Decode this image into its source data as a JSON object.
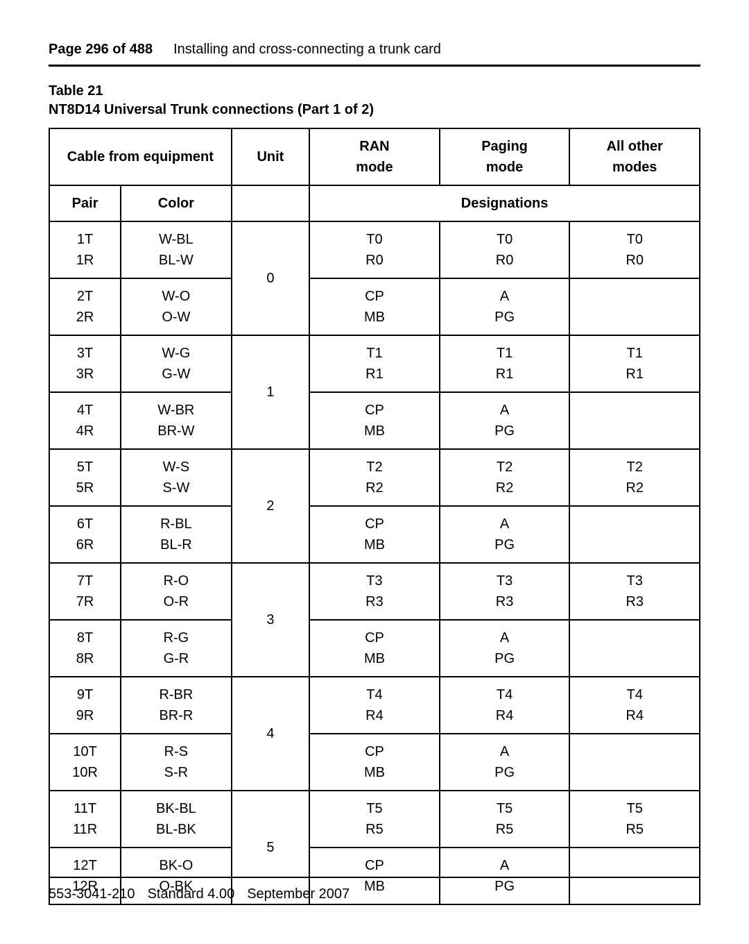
{
  "header": {
    "page_label": "Page 296 of 488",
    "title": "Installing and cross-connecting a trunk card"
  },
  "table": {
    "label": "Table 21",
    "caption": "NT8D14 Universal Trunk connections (Part 1 of 2)",
    "head": {
      "cable_from_equipment": "Cable from equipment",
      "unit": "Unit",
      "ran_mode_l1": "RAN",
      "ran_mode_l2": "mode",
      "paging_mode_l1": "Paging",
      "paging_mode_l2": "mode",
      "all_other_l1": "All other",
      "all_other_l2": "modes",
      "pair": "Pair",
      "color": "Color",
      "designations": "Designations"
    },
    "units": [
      {
        "unit": "0",
        "rows": [
          {
            "pair_t": "1T",
            "pair_r": "1R",
            "color_t": "W-BL",
            "color_r": "BL-W",
            "ran_t": "T0",
            "ran_r": "R0",
            "pag_t": "T0",
            "pag_r": "R0",
            "oth_t": "T0",
            "oth_r": "R0"
          },
          {
            "pair_t": "2T",
            "pair_r": "2R",
            "color_t": "W-O",
            "color_r": "O-W",
            "ran_t": "CP",
            "ran_r": "MB",
            "pag_t": "A",
            "pag_r": "PG",
            "oth_t": "",
            "oth_r": ""
          }
        ]
      },
      {
        "unit": "1",
        "rows": [
          {
            "pair_t": "3T",
            "pair_r": "3R",
            "color_t": "W-G",
            "color_r": "G-W",
            "ran_t": "T1",
            "ran_r": "R1",
            "pag_t": "T1",
            "pag_r": "R1",
            "oth_t": "T1",
            "oth_r": "R1"
          },
          {
            "pair_t": "4T",
            "pair_r": "4R",
            "color_t": "W-BR",
            "color_r": "BR-W",
            "ran_t": "CP",
            "ran_r": "MB",
            "pag_t": "A",
            "pag_r": "PG",
            "oth_t": "",
            "oth_r": ""
          }
        ]
      },
      {
        "unit": "2",
        "rows": [
          {
            "pair_t": "5T",
            "pair_r": "5R",
            "color_t": "W-S",
            "color_r": "S-W",
            "ran_t": "T2",
            "ran_r": "R2",
            "pag_t": "T2",
            "pag_r": "R2",
            "oth_t": "T2",
            "oth_r": "R2"
          },
          {
            "pair_t": "6T",
            "pair_r": "6R",
            "color_t": "R-BL",
            "color_r": "BL-R",
            "ran_t": "CP",
            "ran_r": "MB",
            "pag_t": "A",
            "pag_r": "PG",
            "oth_t": "",
            "oth_r": ""
          }
        ]
      },
      {
        "unit": "3",
        "rows": [
          {
            "pair_t": "7T",
            "pair_r": "7R",
            "color_t": "R-O",
            "color_r": "O-R",
            "ran_t": "T3",
            "ran_r": "R3",
            "pag_t": "T3",
            "pag_r": "R3",
            "oth_t": "T3",
            "oth_r": "R3"
          },
          {
            "pair_t": "8T",
            "pair_r": "8R",
            "color_t": "R-G",
            "color_r": "G-R",
            "ran_t": "CP",
            "ran_r": "MB",
            "pag_t": "A",
            "pag_r": "PG",
            "oth_t": "",
            "oth_r": ""
          }
        ]
      },
      {
        "unit": "4",
        "rows": [
          {
            "pair_t": "9T",
            "pair_r": "9R",
            "color_t": "R-BR",
            "color_r": "BR-R",
            "ran_t": "T4",
            "ran_r": "R4",
            "pag_t": "T4",
            "pag_r": "R4",
            "oth_t": "T4",
            "oth_r": "R4"
          },
          {
            "pair_t": "10T",
            "pair_r": "10R",
            "color_t": "R-S",
            "color_r": "S-R",
            "ran_t": "CP",
            "ran_r": "MB",
            "pag_t": "A",
            "pag_r": "PG",
            "oth_t": "",
            "oth_r": ""
          }
        ]
      },
      {
        "unit": "5",
        "rows": [
          {
            "pair_t": "11T",
            "pair_r": "11R",
            "color_t": "BK-BL",
            "color_r": "BL-BK",
            "ran_t": "T5",
            "ran_r": "R5",
            "pag_t": "T5",
            "pag_r": "R5",
            "oth_t": "T5",
            "oth_r": "R5"
          },
          {
            "pair_t": "12T",
            "pair_r": "12R",
            "color_t": "BK-O",
            "color_r": "O-BK",
            "ran_t": "CP",
            "ran_r": "MB",
            "pag_t": "A",
            "pag_r": "PG",
            "oth_t": "",
            "oth_r": ""
          }
        ]
      }
    ]
  },
  "footer": {
    "doc_id": "553-3041-210",
    "standard": "Standard 4.00",
    "date": "September 2007"
  }
}
